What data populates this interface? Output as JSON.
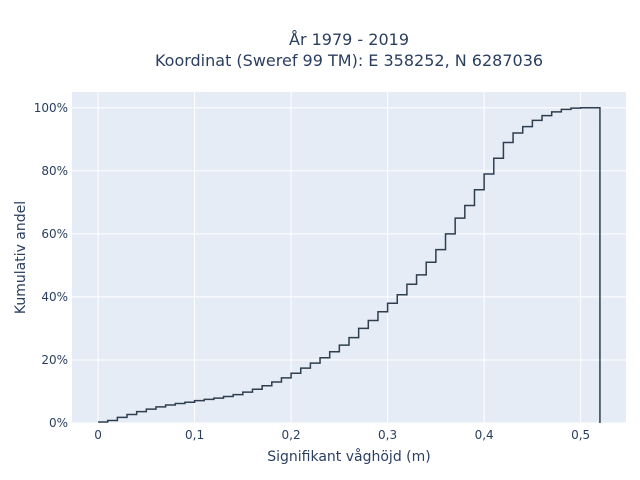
{
  "chart_data": {
    "type": "line",
    "line_shape": "step",
    "title_lines": [
      "År 1979 - 2019",
      "Koordinat (Sweref 99 TM): E 358252, N 6287036"
    ],
    "xlabel": "Signifikant våghöjd (m)",
    "ylabel": "Kumulativ andel",
    "xlim": [
      -0.027,
      0.547
    ],
    "ylim": [
      0,
      1.05
    ],
    "x_ticks": [
      0,
      0.1,
      0.2,
      0.3,
      0.4,
      0.5
    ],
    "x_tick_labels": [
      "0",
      "0,1",
      "0,2",
      "0,3",
      "0,4",
      "0,5"
    ],
    "y_ticks": [
      0,
      0.2,
      0.4,
      0.6,
      0.8,
      1.0
    ],
    "y_tick_labels": [
      "0%",
      "20%",
      "40%",
      "60%",
      "80%",
      "100%"
    ],
    "grid": true,
    "colors": {
      "plot_bg": "#e5ecf6",
      "grid": "#ffffff",
      "line": "#2f3e4e",
      "text": "#2a3f5f"
    },
    "series": [
      {
        "x": [
          0,
          0.01,
          0.02,
          0.03,
          0.04,
          0.05,
          0.06,
          0.07,
          0.08,
          0.09,
          0.1,
          0.11,
          0.12,
          0.13,
          0.14,
          0.15,
          0.16,
          0.17,
          0.18,
          0.19,
          0.2,
          0.21,
          0.22,
          0.23,
          0.24,
          0.25,
          0.26,
          0.27,
          0.28,
          0.29,
          0.3,
          0.31,
          0.32,
          0.33,
          0.34,
          0.35,
          0.36,
          0.37,
          0.38,
          0.39,
          0.4,
          0.41,
          0.42,
          0.43,
          0.44,
          0.45,
          0.46,
          0.47,
          0.48,
          0.49,
          0.5,
          0.51,
          0.52
        ],
        "y": [
          0.003,
          0.008,
          0.018,
          0.027,
          0.036,
          0.044,
          0.051,
          0.057,
          0.062,
          0.066,
          0.071,
          0.075,
          0.079,
          0.084,
          0.09,
          0.098,
          0.107,
          0.118,
          0.13,
          0.143,
          0.158,
          0.174,
          0.19,
          0.207,
          0.226,
          0.247,
          0.271,
          0.3,
          0.325,
          0.353,
          0.38,
          0.407,
          0.44,
          0.47,
          0.51,
          0.55,
          0.6,
          0.65,
          0.69,
          0.74,
          0.79,
          0.84,
          0.89,
          0.92,
          0.94,
          0.96,
          0.975,
          0.987,
          0.995,
          0.999,
          1.0,
          1.0,
          1.0
        ]
      }
    ]
  }
}
